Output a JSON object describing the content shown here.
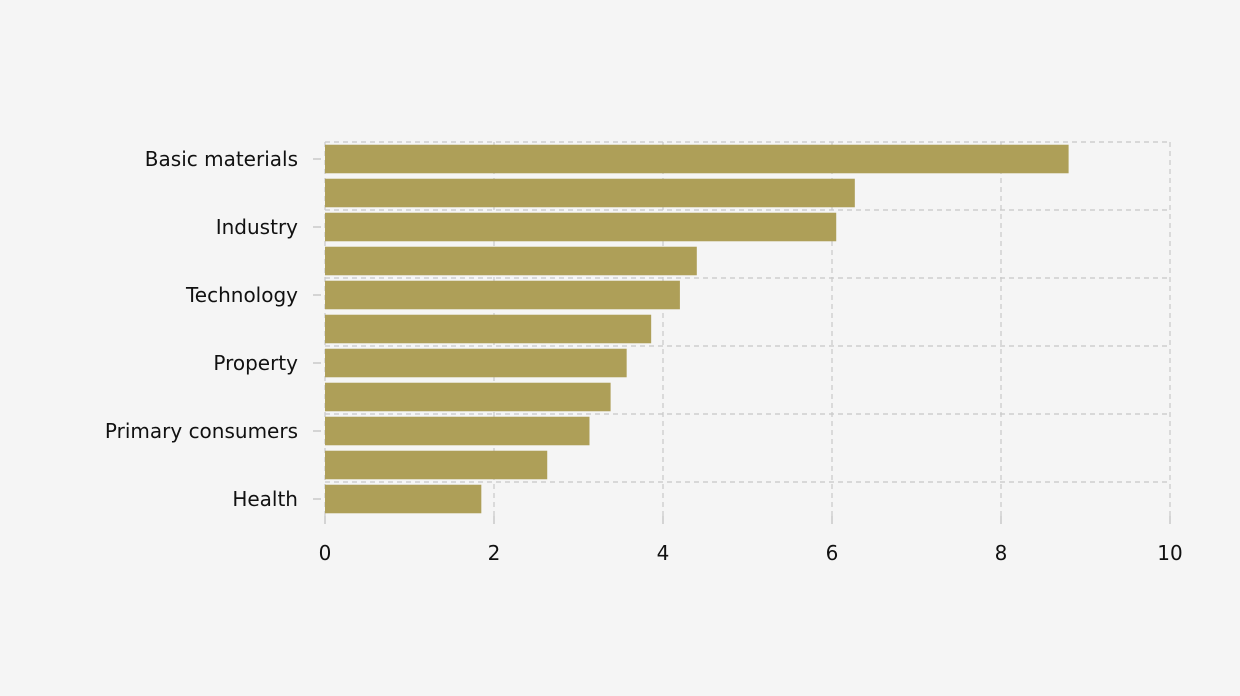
{
  "colors": {
    "background": "#f5f5f5",
    "bar": "#ae9f58",
    "grid": "#c8c8c8",
    "text": "#111111"
  },
  "chart_data": {
    "type": "bar",
    "orientation": "horizontal",
    "categories": [
      "",
      "",
      "",
      "",
      "",
      "",
      "",
      "",
      "",
      "",
      ""
    ],
    "tick_labels": [
      "Basic materials",
      "",
      "Industry",
      "",
      "Technology",
      "",
      "Property",
      "",
      "Primary consumers",
      "",
      "Health"
    ],
    "values": [
      8.8,
      6.27,
      6.05,
      4.4,
      4.2,
      3.86,
      3.57,
      3.38,
      3.13,
      2.63,
      1.85
    ],
    "xlim": [
      0,
      10
    ],
    "xticks": [
      0,
      2,
      4,
      6,
      8,
      10
    ],
    "title": "",
    "xlabel": "",
    "ylabel": "",
    "grid": true,
    "legend": "none"
  }
}
